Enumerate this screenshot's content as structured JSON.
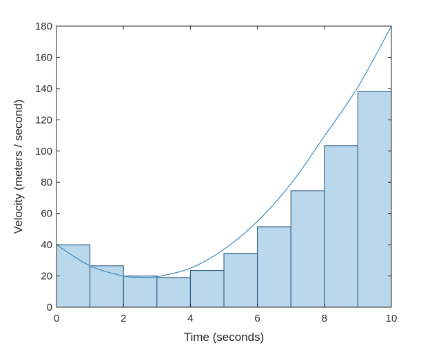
{
  "chart_data": {
    "type": "bar",
    "title": "",
    "xlabel": "Time (seconds)",
    "ylabel": "Velocity (meters / second)",
    "xlim": [
      0,
      10
    ],
    "ylim": [
      0,
      180
    ],
    "xticks": [
      0,
      2,
      4,
      6,
      8,
      10
    ],
    "yticks": [
      0,
      20,
      40,
      60,
      80,
      100,
      120,
      140,
      160,
      180
    ],
    "grid": false,
    "bars": {
      "x_start": [
        0,
        1,
        2,
        3,
        4,
        5,
        6,
        7,
        8,
        9
      ],
      "x_end": [
        1,
        2,
        3,
        4,
        5,
        6,
        7,
        8,
        9,
        10
      ],
      "values": [
        40,
        26.5,
        20,
        19,
        23.5,
        34.5,
        51.5,
        74.5,
        103.5,
        138
      ]
    },
    "curve": {
      "x": [
        0,
        1,
        2,
        2.5,
        3,
        4,
        5,
        6,
        7,
        8,
        9,
        10
      ],
      "y": [
        40,
        26.5,
        20,
        19.2,
        19.5,
        25,
        37,
        55,
        79,
        109.5,
        141,
        180
      ]
    },
    "colors": {
      "bar_fill": "#bad8ec",
      "bar_edge": "#1f4e79",
      "curve": "#3d8ac0"
    }
  }
}
